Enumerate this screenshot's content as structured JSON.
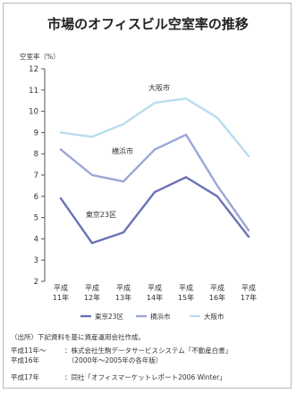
{
  "chart_data": {
    "type": "line",
    "title": "市場のオフィスビル空室率の推移",
    "ylabel": "空室率（%）",
    "ylim": [
      2,
      12
    ],
    "yticks": [
      2,
      3,
      4,
      5,
      6,
      7,
      8,
      9,
      10,
      11,
      12
    ],
    "categories": [
      "平成11年",
      "平成12年",
      "平成13年",
      "平成14年",
      "平成15年",
      "平成16年",
      "平成17年"
    ],
    "category_lines": [
      [
        "平成",
        "11年"
      ],
      [
        "平成",
        "12年"
      ],
      [
        "平成",
        "13年"
      ],
      [
        "平成",
        "14年"
      ],
      [
        "平成",
        "15年"
      ],
      [
        "平成",
        "16年"
      ],
      [
        "平成",
        "17年"
      ]
    ],
    "series": [
      {
        "name": "東京23区",
        "label": "東京23区",
        "color": "#6b73b5",
        "values": [
          5.9,
          3.8,
          4.3,
          6.2,
          6.9,
          6.0,
          4.1
        ]
      },
      {
        "name": "横浜市",
        "label": "横浜市",
        "color": "#9ca6d6",
        "values": [
          8.2,
          7.0,
          6.7,
          8.2,
          8.9,
          6.5,
          4.4
        ]
      },
      {
        "name": "大阪市",
        "label": "大阪市",
        "color": "#b9dcef",
        "values": [
          9.0,
          8.8,
          9.4,
          10.4,
          10.6,
          9.7,
          7.9
        ]
      }
    ],
    "legend_position": "bottom",
    "grid": false
  },
  "notes": {
    "source_title": "（出所）下記資料を基に資産運用会社作成。",
    "rows": [
      {
        "label": "平成11年～\n平成16年",
        "text": "：株式会社生駒データサービスシステム「不動産白書」\n　（2000年～2005年の各年版）"
      },
      {
        "label": "平成17年",
        "text": "：同社「オフィスマーケットレポート2006 Winter」"
      }
    ]
  }
}
